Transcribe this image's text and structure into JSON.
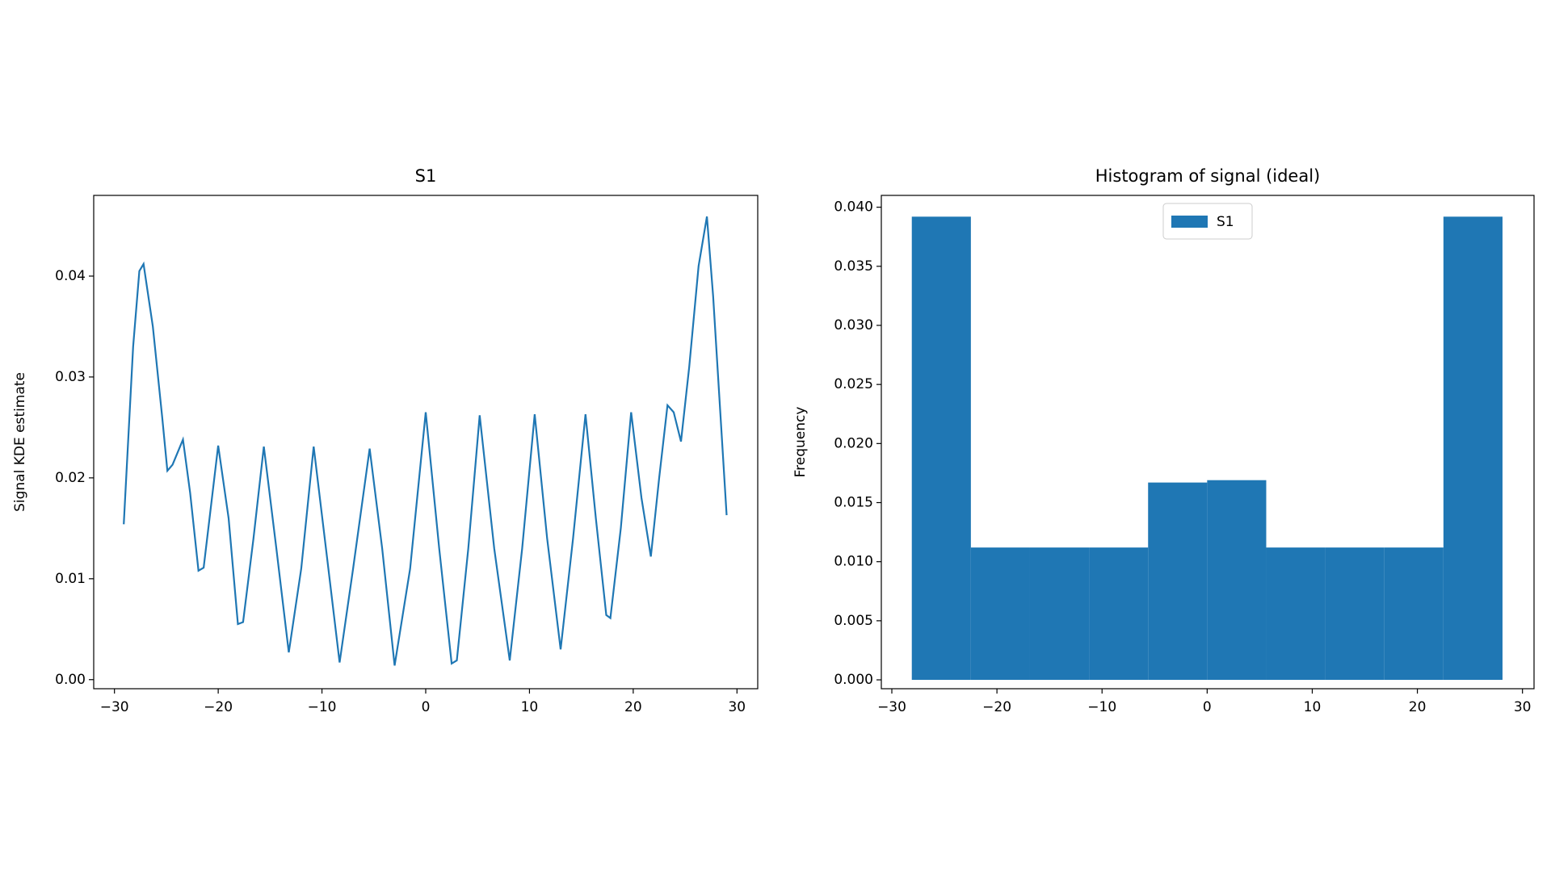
{
  "chart_data": [
    {
      "type": "line",
      "title": "S1",
      "ylabel": "Signal KDE estimate",
      "color": "#1f77b4",
      "x": [
        -29.1,
        -28.2,
        -27.6,
        -27.2,
        -26.3,
        -25.4,
        -24.9,
        -24.4,
        -23.4,
        -22.7,
        -21.9,
        -21.4,
        -20.0,
        -19.0,
        -18.1,
        -17.6,
        -16.6,
        -15.6,
        -14.4,
        -13.2,
        -12.0,
        -10.8,
        -9.5,
        -8.3,
        -7.0,
        -5.4,
        -4.2,
        -3.0,
        -1.5,
        0,
        1.3,
        2.5,
        3.0,
        4.1,
        5.2,
        6.6,
        8.1,
        9.3,
        10.5,
        11.7,
        13.0,
        14.2,
        15.4,
        16.4,
        17.4,
        17.8,
        18.8,
        19.8,
        20.8,
        21.7,
        22.5,
        23.3,
        23.9,
        24.6,
        25.4,
        26.3,
        27.1,
        27.7,
        28.3,
        29.0
      ],
      "values": [
        0.0154,
        0.033,
        0.0405,
        0.0412,
        0.035,
        0.026,
        0.0207,
        0.0213,
        0.0238,
        0.0185,
        0.0108,
        0.0111,
        0.0232,
        0.016,
        0.0055,
        0.0057,
        0.014,
        0.0231,
        0.013,
        0.0027,
        0.011,
        0.0231,
        0.012,
        0.0017,
        0.011,
        0.0229,
        0.013,
        0.0014,
        0.011,
        0.0265,
        0.013,
        0.0016,
        0.0019,
        0.013,
        0.0262,
        0.013,
        0.0019,
        0.013,
        0.0263,
        0.014,
        0.003,
        0.014,
        0.0263,
        0.016,
        0.0064,
        0.0061,
        0.015,
        0.0265,
        0.018,
        0.0122,
        0.02,
        0.0272,
        0.0265,
        0.0236,
        0.031,
        0.041,
        0.0459,
        0.038,
        0.028,
        0.0163
      ],
      "xlim": [
        -32,
        32
      ],
      "ylim": [
        -0.0009,
        0.048
      ],
      "xticks": [
        {
          "value": -30,
          "label": "−30"
        },
        {
          "value": -20,
          "label": "−20"
        },
        {
          "value": -10,
          "label": "−10"
        },
        0,
        10,
        20,
        30
      ],
      "yticks": [
        {
          "value": 0,
          "label": "0.00"
        },
        {
          "value": 0.01,
          "label": "0.01"
        },
        {
          "value": 0.02,
          "label": "0.02"
        },
        {
          "value": 0.03,
          "label": "0.03"
        },
        {
          "value": 0.04,
          "label": "0.04"
        }
      ]
    },
    {
      "type": "histogram",
      "title": "Histogram of signal (ideal)",
      "ylabel": "Frequency",
      "legend": "upper center",
      "bins": [
        -28.1,
        -22.48,
        -16.86,
        -11.24,
        -5.62,
        0,
        5.62,
        11.24,
        16.86,
        22.48,
        28.1
      ],
      "series": [
        {
          "name": "S1",
          "color": "#1f77b4",
          "values": [
            0.0392,
            0.0112,
            0.0112,
            0.0112,
            0.0167,
            0.0169,
            0.0112,
            0.0112,
            0.0112,
            0.0392
          ]
        }
      ],
      "xlim": [
        -31,
        31.1
      ],
      "ylim": [
        -0.00075,
        0.041
      ],
      "xticks": [
        {
          "value": -30,
          "label": "−30"
        },
        {
          "value": -20,
          "label": "−20"
        },
        {
          "value": -10,
          "label": "−10"
        },
        0,
        10,
        20,
        30
      ],
      "yticks": [
        {
          "value": 0,
          "label": "0.000"
        },
        {
          "value": 0.005,
          "label": "0.005"
        },
        {
          "value": 0.01,
          "label": "0.010"
        },
        {
          "value": 0.015,
          "label": "0.015"
        },
        {
          "value": 0.02,
          "label": "0.020"
        },
        {
          "value": 0.025,
          "label": "0.025"
        },
        {
          "value": 0.03,
          "label": "0.030"
        },
        {
          "value": 0.035,
          "label": "0.035"
        },
        {
          "value": 0.04,
          "label": "0.040"
        }
      ]
    }
  ]
}
